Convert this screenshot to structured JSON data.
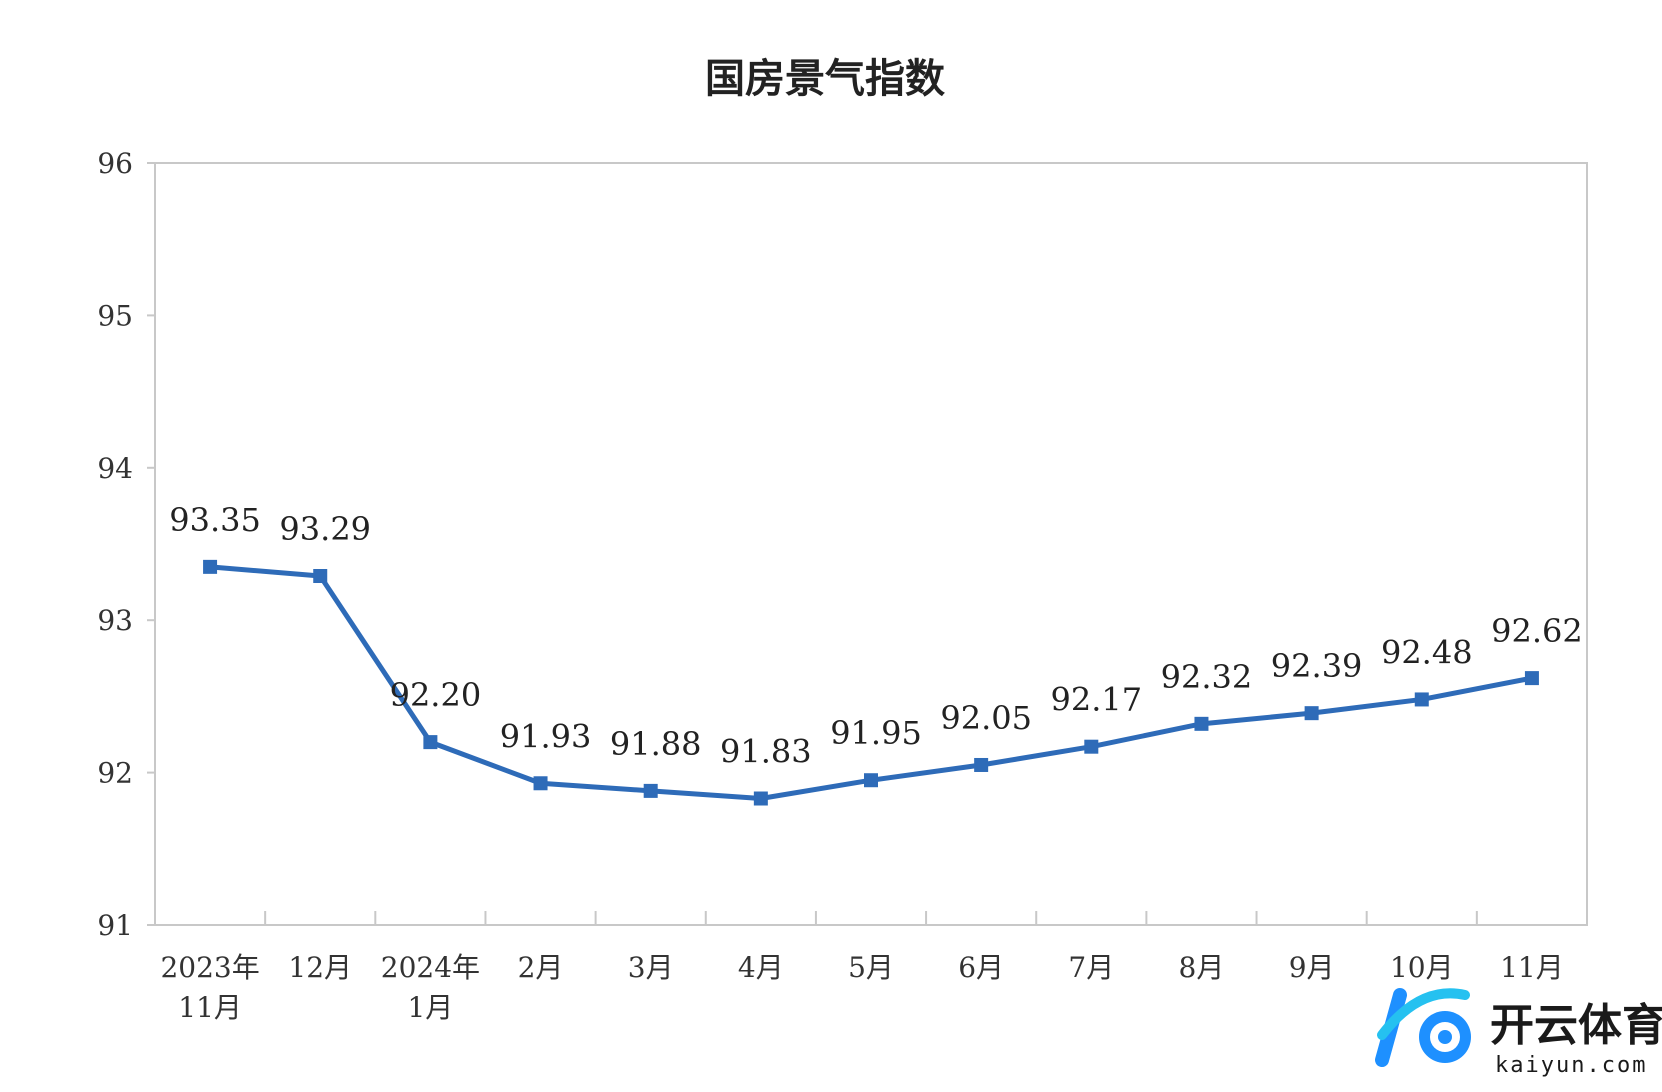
{
  "chart_data": {
    "type": "line",
    "title": "国房景气指数",
    "categories": [
      [
        "2023年",
        "11月"
      ],
      [
        "12月"
      ],
      [
        "2024年",
        "1月"
      ],
      [
        "2月"
      ],
      [
        "3月"
      ],
      [
        "4月"
      ],
      [
        "5月"
      ],
      [
        "6月"
      ],
      [
        "7月"
      ],
      [
        "8月"
      ],
      [
        "9月"
      ],
      [
        "10月"
      ],
      [
        "11月"
      ]
    ],
    "series": [
      {
        "values": [
          93.35,
          93.29,
          92.2,
          91.93,
          91.88,
          91.83,
          91.95,
          92.05,
          92.17,
          92.32,
          92.39,
          92.48,
          92.62
        ],
        "labels": [
          "93.35",
          "93.29",
          "92.20",
          "91.93",
          "91.88",
          "91.83",
          "91.95",
          "92.05",
          "92.17",
          "92.32",
          "92.39",
          "92.48",
          "92.62"
        ],
        "color": "#2e6bb8"
      }
    ],
    "ylim": [
      91,
      96
    ],
    "yticks": [
      "91",
      "92",
      "93",
      "94",
      "95",
      "96"
    ],
    "xlabel": "",
    "ylabel": "",
    "grid": false,
    "legend": false
  },
  "watermark": {
    "cn": "开云体育",
    "en": "kaiyun.com",
    "colors": {
      "primary": "#1e90ff",
      "secondary": "#25c1f0"
    }
  }
}
